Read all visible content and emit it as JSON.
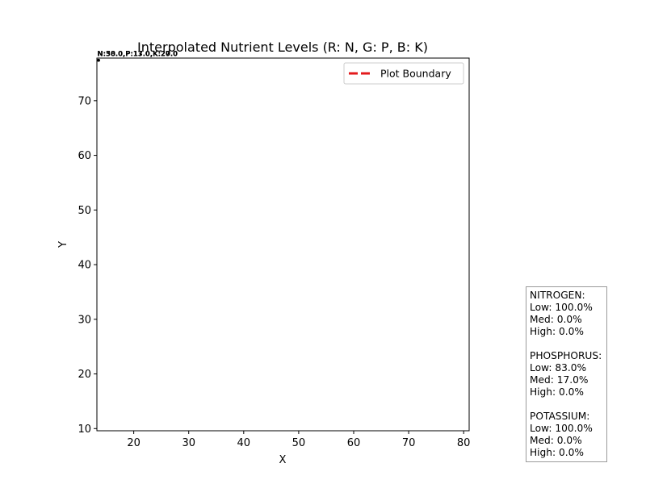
{
  "chart_data": {
    "type": "scatter",
    "title": "Interpolated Nutrient Levels (R: N, G: P, B: K)",
    "xlabel": "X",
    "ylabel": "Y",
    "xlim": [
      13.3,
      81.0
    ],
    "ylim": [
      9.6,
      77.8
    ],
    "xticks": [
      20,
      30,
      40,
      50,
      60,
      70,
      80
    ],
    "yticks": [
      10,
      20,
      30,
      40,
      50,
      60,
      70
    ],
    "grid": false,
    "legend": {
      "placement": "top-right",
      "entries": [
        {
          "label": "Plot Boundary",
          "color": "#e31a1c",
          "style": "dashed"
        }
      ]
    },
    "points": [
      {
        "x": 13.6,
        "y": 77.4,
        "label": "N:30.0,P:13.0,K:20.0"
      },
      {
        "x": 13.6,
        "y": 77.4,
        "label": "N:58.0,P:17.0,K:27.0"
      }
    ]
  },
  "stats": {
    "nitrogen": {
      "heading": "NITROGEN:",
      "low": "Low: 100.0%",
      "med": "Med: 0.0%",
      "high": "High: 0.0%"
    },
    "phosphorus": {
      "heading": "PHOSPHORUS:",
      "low": "Low: 83.0%",
      "med": "Med: 17.0%",
      "high": "High: 0.0%"
    },
    "potassium": {
      "heading": "POTASSIUM:",
      "low": "Low: 100.0%",
      "med": "Med: 0.0%",
      "high": "High: 0.0%"
    }
  }
}
